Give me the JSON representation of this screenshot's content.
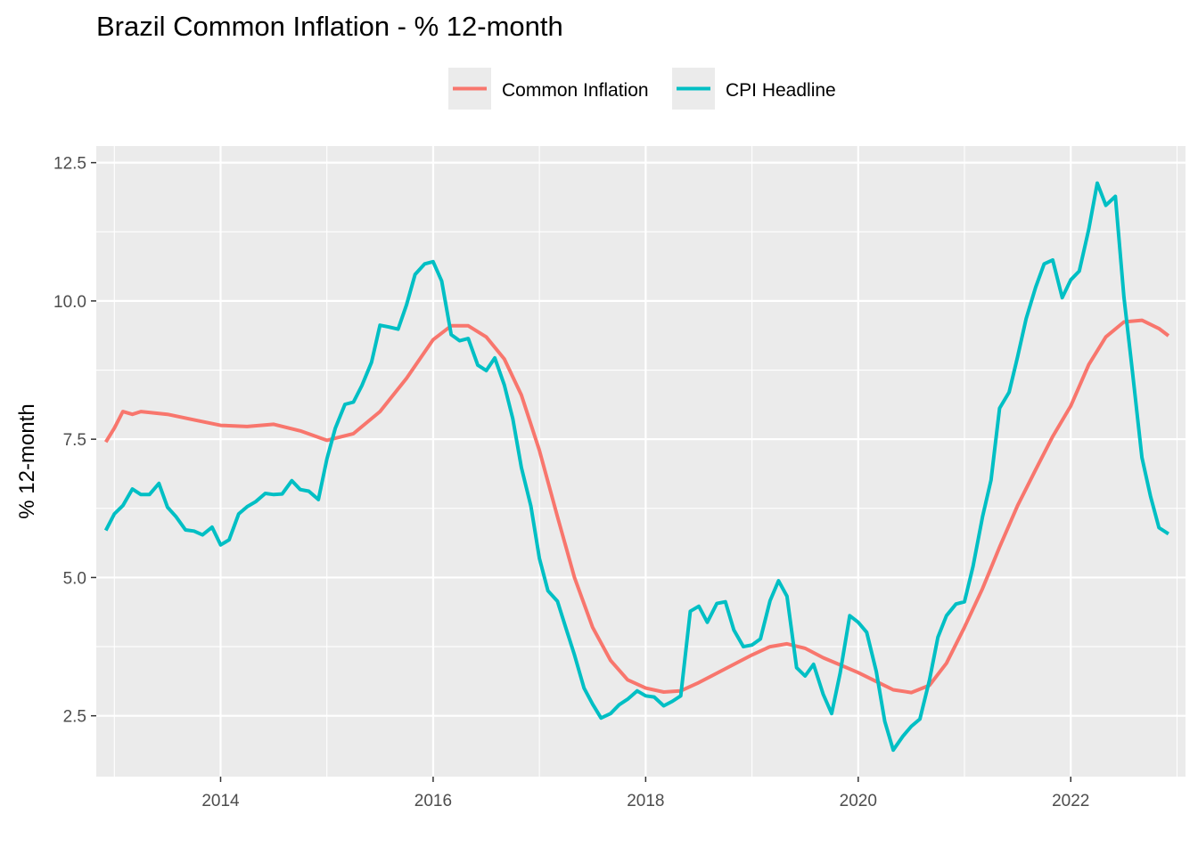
{
  "chart_data": {
    "type": "line",
    "title": "Brazil Common Inflation - % 12-month",
    "xlabel": "",
    "ylabel": "% 12-month",
    "x_range": [
      2012.83,
      2023.08
    ],
    "ylim": [
      1.4,
      12.8
    ],
    "x_ticks": [
      2014,
      2016,
      2018,
      2020,
      2022
    ],
    "x_tick_labels": [
      "2014",
      "2016",
      "2018",
      "2020",
      "2022"
    ],
    "y_ticks": [
      2.5,
      5.0,
      7.5,
      10.0,
      12.5
    ],
    "y_tick_labels": [
      "2.5",
      "5.0",
      "7.5",
      "10.0",
      "12.5"
    ],
    "legend_position": "top",
    "grid": true,
    "panel_background": "#EBEBEB",
    "series": [
      {
        "name": "Common Inflation",
        "color": "#F8766D",
        "points": [
          [
            2012.92,
            7.45
          ],
          [
            2013.0,
            7.7
          ],
          [
            2013.08,
            8.0
          ],
          [
            2013.17,
            7.95
          ],
          [
            2013.25,
            8.0
          ],
          [
            2013.5,
            7.95
          ],
          [
            2013.75,
            7.85
          ],
          [
            2014.0,
            7.75
          ],
          [
            2014.25,
            7.73
          ],
          [
            2014.5,
            7.77
          ],
          [
            2014.75,
            7.65
          ],
          [
            2015.0,
            7.48
          ],
          [
            2015.25,
            7.6
          ],
          [
            2015.5,
            8.0
          ],
          [
            2015.75,
            8.6
          ],
          [
            2016.0,
            9.3
          ],
          [
            2016.17,
            9.55
          ],
          [
            2016.33,
            9.55
          ],
          [
            2016.5,
            9.35
          ],
          [
            2016.67,
            8.95
          ],
          [
            2016.83,
            8.3
          ],
          [
            2017.0,
            7.3
          ],
          [
            2017.17,
            6.1
          ],
          [
            2017.33,
            5.0
          ],
          [
            2017.5,
            4.1
          ],
          [
            2017.67,
            3.5
          ],
          [
            2017.83,
            3.15
          ],
          [
            2018.0,
            3.0
          ],
          [
            2018.17,
            2.93
          ],
          [
            2018.33,
            2.95
          ],
          [
            2018.5,
            3.1
          ],
          [
            2018.75,
            3.35
          ],
          [
            2019.0,
            3.6
          ],
          [
            2019.17,
            3.75
          ],
          [
            2019.33,
            3.8
          ],
          [
            2019.5,
            3.72
          ],
          [
            2019.67,
            3.55
          ],
          [
            2019.83,
            3.42
          ],
          [
            2020.0,
            3.28
          ],
          [
            2020.17,
            3.12
          ],
          [
            2020.33,
            2.97
          ],
          [
            2020.5,
            2.92
          ],
          [
            2020.67,
            3.05
          ],
          [
            2020.83,
            3.45
          ],
          [
            2021.0,
            4.1
          ],
          [
            2021.17,
            4.8
          ],
          [
            2021.33,
            5.55
          ],
          [
            2021.5,
            6.3
          ],
          [
            2021.67,
            6.95
          ],
          [
            2021.83,
            7.55
          ],
          [
            2022.0,
            8.1
          ],
          [
            2022.17,
            8.85
          ],
          [
            2022.33,
            9.35
          ],
          [
            2022.5,
            9.62
          ],
          [
            2022.67,
            9.65
          ],
          [
            2022.83,
            9.5
          ],
          [
            2022.92,
            9.37
          ]
        ]
      },
      {
        "name": "CPI Headline",
        "color": "#00BFC4",
        "points": [
          [
            2012.92,
            5.85
          ],
          [
            2013.0,
            6.15
          ],
          [
            2013.08,
            6.3
          ],
          [
            2013.17,
            6.6
          ],
          [
            2013.25,
            6.5
          ],
          [
            2013.33,
            6.5
          ],
          [
            2013.42,
            6.7
          ],
          [
            2013.5,
            6.27
          ],
          [
            2013.58,
            6.1
          ],
          [
            2013.67,
            5.86
          ],
          [
            2013.75,
            5.84
          ],
          [
            2013.83,
            5.77
          ],
          [
            2013.92,
            5.91
          ],
          [
            2014.0,
            5.59
          ],
          [
            2014.08,
            5.68
          ],
          [
            2014.17,
            6.15
          ],
          [
            2014.25,
            6.28
          ],
          [
            2014.33,
            6.37
          ],
          [
            2014.42,
            6.52
          ],
          [
            2014.5,
            6.5
          ],
          [
            2014.58,
            6.51
          ],
          [
            2014.67,
            6.75
          ],
          [
            2014.75,
            6.59
          ],
          [
            2014.83,
            6.56
          ],
          [
            2014.92,
            6.41
          ],
          [
            2015.0,
            7.14
          ],
          [
            2015.08,
            7.7
          ],
          [
            2015.17,
            8.13
          ],
          [
            2015.25,
            8.17
          ],
          [
            2015.33,
            8.47
          ],
          [
            2015.42,
            8.89
          ],
          [
            2015.5,
            9.56
          ],
          [
            2015.58,
            9.53
          ],
          [
            2015.67,
            9.49
          ],
          [
            2015.75,
            9.93
          ],
          [
            2015.83,
            10.48
          ],
          [
            2015.92,
            10.67
          ],
          [
            2016.0,
            10.71
          ],
          [
            2016.08,
            10.36
          ],
          [
            2016.17,
            9.39
          ],
          [
            2016.25,
            9.28
          ],
          [
            2016.33,
            9.32
          ],
          [
            2016.42,
            8.84
          ],
          [
            2016.5,
            8.74
          ],
          [
            2016.58,
            8.97
          ],
          [
            2016.67,
            8.48
          ],
          [
            2016.75,
            7.87
          ],
          [
            2016.83,
            6.99
          ],
          [
            2016.92,
            6.29
          ],
          [
            2017.0,
            5.35
          ],
          [
            2017.08,
            4.76
          ],
          [
            2017.17,
            4.57
          ],
          [
            2017.25,
            4.08
          ],
          [
            2017.33,
            3.6
          ],
          [
            2017.42,
            3.0
          ],
          [
            2017.5,
            2.71
          ],
          [
            2017.58,
            2.46
          ],
          [
            2017.67,
            2.54
          ],
          [
            2017.75,
            2.7
          ],
          [
            2017.83,
            2.8
          ],
          [
            2017.92,
            2.95
          ],
          [
            2018.0,
            2.86
          ],
          [
            2018.08,
            2.84
          ],
          [
            2018.17,
            2.68
          ],
          [
            2018.25,
            2.76
          ],
          [
            2018.33,
            2.86
          ],
          [
            2018.42,
            4.39
          ],
          [
            2018.5,
            4.48
          ],
          [
            2018.58,
            4.19
          ],
          [
            2018.67,
            4.53
          ],
          [
            2018.75,
            4.56
          ],
          [
            2018.83,
            4.05
          ],
          [
            2018.92,
            3.75
          ],
          [
            2019.0,
            3.78
          ],
          [
            2019.08,
            3.89
          ],
          [
            2019.17,
            4.58
          ],
          [
            2019.25,
            4.94
          ],
          [
            2019.33,
            4.66
          ],
          [
            2019.42,
            3.37
          ],
          [
            2019.5,
            3.22
          ],
          [
            2019.58,
            3.43
          ],
          [
            2019.67,
            2.89
          ],
          [
            2019.75,
            2.54
          ],
          [
            2019.83,
            3.27
          ],
          [
            2019.92,
            4.31
          ],
          [
            2020.0,
            4.19
          ],
          [
            2020.08,
            4.01
          ],
          [
            2020.17,
            3.3
          ],
          [
            2020.25,
            2.4
          ],
          [
            2020.33,
            1.88
          ],
          [
            2020.42,
            2.13
          ],
          [
            2020.5,
            2.31
          ],
          [
            2020.58,
            2.44
          ],
          [
            2020.67,
            3.14
          ],
          [
            2020.75,
            3.92
          ],
          [
            2020.83,
            4.31
          ],
          [
            2020.92,
            4.52
          ],
          [
            2021.0,
            4.56
          ],
          [
            2021.08,
            5.2
          ],
          [
            2021.17,
            6.1
          ],
          [
            2021.25,
            6.76
          ],
          [
            2021.33,
            8.06
          ],
          [
            2021.42,
            8.35
          ],
          [
            2021.5,
            8.99
          ],
          [
            2021.58,
            9.68
          ],
          [
            2021.67,
            10.25
          ],
          [
            2021.75,
            10.67
          ],
          [
            2021.83,
            10.74
          ],
          [
            2021.92,
            10.06
          ],
          [
            2022.0,
            10.38
          ],
          [
            2022.08,
            10.54
          ],
          [
            2022.17,
            11.3
          ],
          [
            2022.25,
            12.13
          ],
          [
            2022.33,
            11.73
          ],
          [
            2022.42,
            11.89
          ],
          [
            2022.5,
            10.07
          ],
          [
            2022.58,
            8.73
          ],
          [
            2022.67,
            7.17
          ],
          [
            2022.75,
            6.47
          ],
          [
            2022.83,
            5.9
          ],
          [
            2022.92,
            5.79
          ]
        ]
      }
    ]
  }
}
